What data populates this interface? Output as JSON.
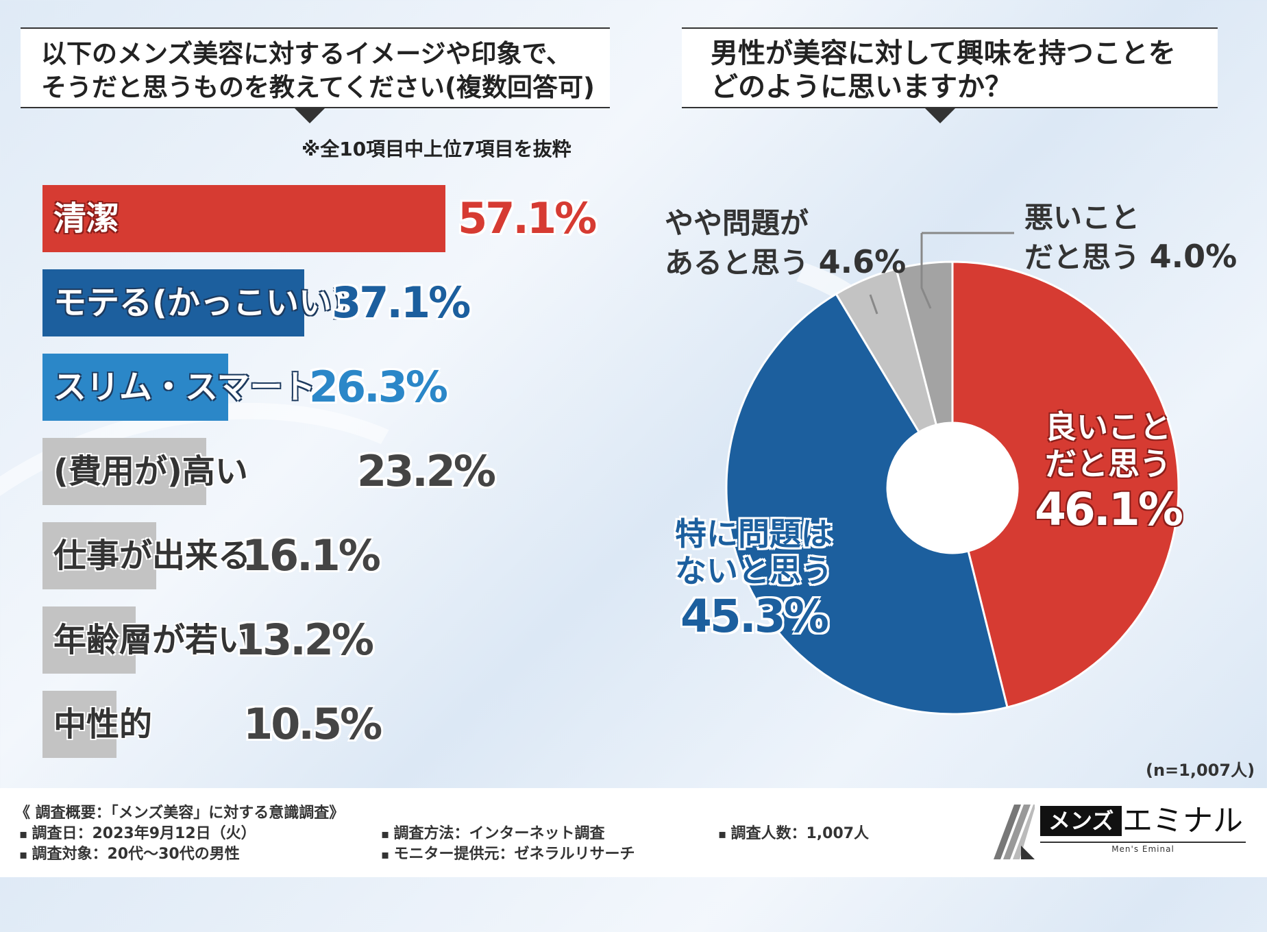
{
  "left_title": {
    "line1": "以下のメンズ美容に対するイメージや印象で、",
    "line2": "そうだと思うものを教えてください(複数回答可)"
  },
  "right_title": {
    "line1": "男性が美容に対して興味を持つことを",
    "line2": "どのように思いますか？"
  },
  "note": "※全10項目中上位7項目を抜粋",
  "sample_size": "(n=1,007人)",
  "colors": {
    "red": "#d63b32",
    "dark_blue": "#1c5f9e",
    "mid_blue": "#2b87c8",
    "gray": "#c3c3c3",
    "gray_dark": "#a3a3a3"
  },
  "chart_data": [
    {
      "type": "bar",
      "orientation": "horizontal",
      "title": "以下のメンズ美容に対するイメージや印象で、そうだと思うものを教えてください(複数回答可)",
      "categories": [
        "清潔",
        "モテる(かっこいい)",
        "スリム・スマート",
        "(費用が)高い",
        "仕事が出来る",
        "年齢層が若い",
        "中性的"
      ],
      "values": [
        57.1,
        37.1,
        26.3,
        23.2,
        16.1,
        13.2,
        10.5
      ],
      "value_labels": [
        "57.1%",
        "37.1%",
        "26.3%",
        "23.2%",
        "16.1%",
        "13.2%",
        "10.5%"
      ],
      "unit": "%",
      "xlim": [
        0,
        100
      ]
    },
    {
      "type": "pie",
      "style": "donut",
      "title": "男性が美容に対して興味を持つことをどのように思いますか？",
      "categories": [
        "良いことだと思う",
        "特に問題はないと思う",
        "やや問題があると思う",
        "悪いことだと思う"
      ],
      "values": [
        46.1,
        45.3,
        4.6,
        4.0
      ],
      "value_labels": [
        "46.1%",
        "45.3%",
        "4.6%",
        "4.0%"
      ],
      "unit": "%"
    }
  ],
  "pie_labels": {
    "good_line1": "良いこと",
    "good_line2": "だと思う",
    "neutral_line1": "特に問題は",
    "neutral_line2": "ないと思う",
    "slight_line1": "やや問題が",
    "slight_line2": "あると思う",
    "bad_line1": "悪いこと",
    "bad_line2": "だと思う"
  },
  "footer": {
    "summary": "《 調査概要：「メンズ美容」に対する意識調査》",
    "date": "調査日：2023年9月12日（火）",
    "target": "調査対象：20代〜30代の男性",
    "method": "調査方法：インターネット調査",
    "provider": "モニター提供元：ゼネラルリサーチ",
    "count": "調査人数：1,007人"
  },
  "logo": {
    "box_text": "メンズ",
    "name": "エミナル",
    "sub": "Men's Eminal"
  }
}
